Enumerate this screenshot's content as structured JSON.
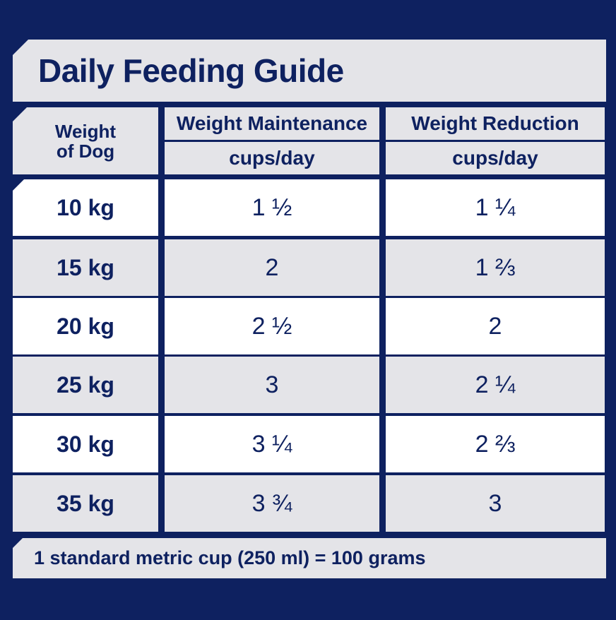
{
  "title": "Daily Feeding Guide",
  "header": {
    "weight_line1": "Weight",
    "weight_line2": "of Dog",
    "col1": "Weight Maintenance",
    "col2": "Weight Reduction",
    "unit1": "cups/day",
    "unit2": "cups/day"
  },
  "rows": [
    {
      "weight": "10 kg",
      "maintenance": "1 ½",
      "reduction": "1 ¼"
    },
    {
      "weight": "15 kg",
      "maintenance": "2",
      "reduction": "1 ⅔"
    },
    {
      "weight": "20 kg",
      "maintenance": "2 ½",
      "reduction": "2"
    },
    {
      "weight": "25 kg",
      "maintenance": "3",
      "reduction": "2 ¼"
    },
    {
      "weight": "30 kg",
      "maintenance": "3 ¼",
      "reduction": "2 ⅔"
    },
    {
      "weight": "35 kg",
      "maintenance": "3 ¾",
      "reduction": "3"
    }
  ],
  "footer": "1 standard metric cup (250 ml) = 100 grams",
  "colors": {
    "background": "#0e2160",
    "light_grey": "#e4e4e8",
    "white": "#ffffff",
    "text": "#0e2160"
  }
}
